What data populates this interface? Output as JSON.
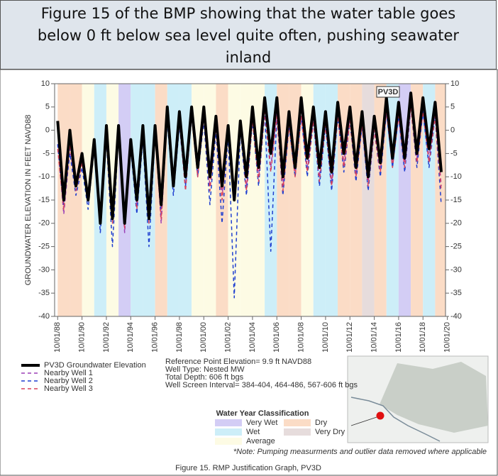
{
  "header": {
    "title_lines": [
      "Figure 15 of the BMP showing that the water table goes",
      "below 0 ft below sea level quite often, pushing seawater",
      "inland"
    ]
  },
  "chart_data": {
    "type": "line",
    "ylabel": "GROUNDWATER ELEVATION IN FEET NAVD88",
    "annotation": "PV3D",
    "x": [
      1988.75,
      1989.25,
      1989.75,
      1990.25,
      1990.75,
      1991.25,
      1991.75,
      1992.25,
      1992.75,
      1993.25,
      1993.75,
      1994.25,
      1994.75,
      1995.25,
      1995.75,
      1996.25,
      1996.75,
      1997.25,
      1997.75,
      1998.25,
      1998.75,
      1999.25,
      1999.75,
      2000.25,
      2000.75,
      2001.25,
      2001.75,
      2002.25,
      2002.75,
      2003.25,
      2003.75,
      2004.25,
      2004.75,
      2005.25,
      2005.75,
      2006.25,
      2006.75,
      2007.25,
      2007.75,
      2008.25,
      2008.75,
      2009.25,
      2009.75,
      2010.25,
      2010.75,
      2011.25,
      2011.75,
      2012.25,
      2012.75,
      2013.25,
      2013.75,
      2014.25,
      2014.75,
      2015.25,
      2015.75,
      2016.25,
      2016.75,
      2017.25,
      2017.75,
      2018.25,
      2018.75,
      2019.25,
      2019.75,
      2020.25
    ],
    "series": [
      {
        "name": "PV3D Groundwater Elevation",
        "color": "#000000",
        "dash": "none",
        "width": 4,
        "values": [
          2,
          -15,
          0,
          -12,
          -5,
          -15,
          -2,
          -20,
          1,
          -19,
          1,
          -20,
          -2,
          -15,
          1,
          -19,
          1,
          -16,
          5,
          -12,
          4,
          -10,
          5,
          -8,
          5,
          -10,
          3,
          -12,
          1,
          -15,
          2,
          -10,
          5,
          -8,
          7,
          -5,
          7,
          -10,
          4,
          -8,
          7,
          -6,
          5,
          -8,
          4,
          -9,
          6,
          -5,
          5,
          -8,
          4,
          -10,
          3,
          -7,
          7,
          -6,
          6,
          -6,
          8,
          -5,
          7,
          -4,
          6,
          -9
        ]
      },
      {
        "name": "Nearby Well 1",
        "color": "#9b3fb5",
        "dash": "5 4",
        "width": 1.5,
        "values": [
          -3,
          -18,
          -4,
          -12,
          -6,
          -14,
          -3,
          -20,
          -1,
          -18,
          0,
          -22,
          -3,
          -16,
          0,
          -18,
          0,
          -20,
          3,
          -10,
          2,
          -12,
          4,
          -9,
          3,
          -12,
          1,
          -14,
          0,
          -13,
          1,
          -12,
          3,
          -10,
          5,
          -8,
          4,
          -12,
          2,
          -9,
          4,
          -8,
          3,
          -10,
          2,
          -11,
          4,
          -7,
          3,
          -9,
          2,
          -11,
          1,
          -8,
          5,
          -7,
          4,
          -7,
          6,
          -6,
          5,
          -6,
          4,
          -12
        ]
      },
      {
        "name": "Nearby Well 2",
        "color": "#1f3fd0",
        "dash": "5 4",
        "width": 1.5,
        "values": [
          -3,
          -16,
          -5,
          -14,
          -8,
          -17,
          -4,
          -22,
          -2,
          -25,
          -1,
          -20,
          -4,
          -18,
          -2,
          -25,
          -1,
          -18,
          2,
          -14,
          1,
          -12,
          3,
          -10,
          2,
          -16,
          0,
          -20,
          -1,
          -36,
          0,
          -14,
          2,
          -12,
          4,
          -26,
          3,
          -14,
          1,
          -10,
          3,
          -10,
          2,
          -12,
          1,
          -13,
          3,
          -9,
          2,
          -11,
          1,
          -13,
          0,
          -10,
          4,
          -8,
          3,
          -9,
          5,
          -8,
          4,
          -8,
          3,
          -16
        ]
      },
      {
        "name": "Nearby Well 3",
        "color": "#d9405a",
        "dash": "5 4",
        "width": 1.5,
        "values": [
          -4,
          -17,
          -3,
          -13,
          -7,
          -15,
          -2,
          -19,
          -2,
          -20,
          -1,
          -21,
          -3,
          -17,
          -1,
          -20,
          -1,
          -19,
          4,
          -11,
          2,
          -13,
          3,
          -10,
          3,
          -13,
          1,
          -15,
          0,
          -14,
          1,
          -13,
          2,
          -11,
          4,
          -9,
          3,
          -13,
          1,
          -10,
          3,
          -9,
          2,
          -11,
          1,
          -12,
          3,
          -8,
          2,
          -10,
          1,
          -12,
          0,
          -9,
          4,
          -8,
          3,
          -8,
          5,
          -7,
          4,
          -7,
          3,
          -13
        ]
      }
    ],
    "xlim": [
      1988.5,
      2020.6
    ],
    "xticks": [
      {
        "value": 1988.75,
        "label": "10/01/88"
      },
      {
        "value": 1990.75,
        "label": "10/01/90"
      },
      {
        "value": 1992.75,
        "label": "10/01/92"
      },
      {
        "value": 1994.75,
        "label": "10/01/94"
      },
      {
        "value": 1996.75,
        "label": "10/01/96"
      },
      {
        "value": 1998.75,
        "label": "10/01/98"
      },
      {
        "value": 2000.75,
        "label": "10/01/00"
      },
      {
        "value": 2002.75,
        "label": "10/01/02"
      },
      {
        "value": 2004.75,
        "label": "10/01/04"
      },
      {
        "value": 2006.75,
        "label": "10/01/06"
      },
      {
        "value": 2008.75,
        "label": "10/01/08"
      },
      {
        "value": 2010.75,
        "label": "10/01/10"
      },
      {
        "value": 2012.75,
        "label": "10/01/12"
      },
      {
        "value": 2014.75,
        "label": "10/01/14"
      },
      {
        "value": 2016.75,
        "label": "10/01/16"
      },
      {
        "value": 2018.75,
        "label": "10/01/18"
      },
      {
        "value": 2020.75,
        "label": "10/01/20"
      }
    ],
    "ylim": [
      -40,
      10
    ],
    "yticks": [
      -40,
      -35,
      -30,
      -25,
      -20,
      -15,
      -10,
      -5,
      0,
      5,
      10
    ],
    "y2lim": [
      -40,
      10
    ],
    "y2ticks": [
      -40,
      -35,
      -30,
      -25,
      -20,
      -15,
      -10,
      -5,
      0,
      5,
      10
    ],
    "water_year_start": [
      1988.75,
      1989.75,
      1990.75,
      1991.75,
      1992.75,
      1993.75,
      1994.75,
      1995.75,
      1996.75,
      1997.75,
      1998.75,
      1999.75,
      2000.75,
      2001.75,
      2002.75,
      2003.75,
      2004.75,
      2005.75,
      2006.75,
      2007.75,
      2008.75,
      2009.75,
      2010.75,
      2011.75,
      2012.75,
      2013.75,
      2014.75,
      2015.75,
      2016.75,
      2017.75,
      2018.75,
      2019.75
    ],
    "water_year_class": [
      3,
      3,
      2,
      1,
      2,
      0,
      1,
      1,
      3,
      1,
      1,
      2,
      2,
      3,
      2,
      2,
      2,
      1,
      3,
      3,
      2,
      1,
      1,
      3,
      3,
      4,
      3,
      1,
      0,
      3,
      1,
      3
    ],
    "classification_title": "Water Year Classification",
    "classification": [
      {
        "name": "Very Wet",
        "color": "#d3cdf5"
      },
      {
        "name": "Wet",
        "color": "#cdeef8"
      },
      {
        "name": "Average",
        "color": "#fdfbe4"
      },
      {
        "name": "Dry",
        "color": "#fbdcc6"
      },
      {
        "name": "Very Dry",
        "color": "#e6dcdc"
      }
    ],
    "info": [
      "Reference Point Elevation= 9.9 ft NAVD88",
      "Well Type: Nested MW",
      "Total Depth: 606 ft bgs",
      "Well Screen Interval= 384-404, 464-486, 567-606 ft bgs"
    ],
    "note": "*Note: Pumping measurments and outlier data removed where applicable",
    "caption": "Figure 15. RMP Justification Graph, PV3D"
  }
}
